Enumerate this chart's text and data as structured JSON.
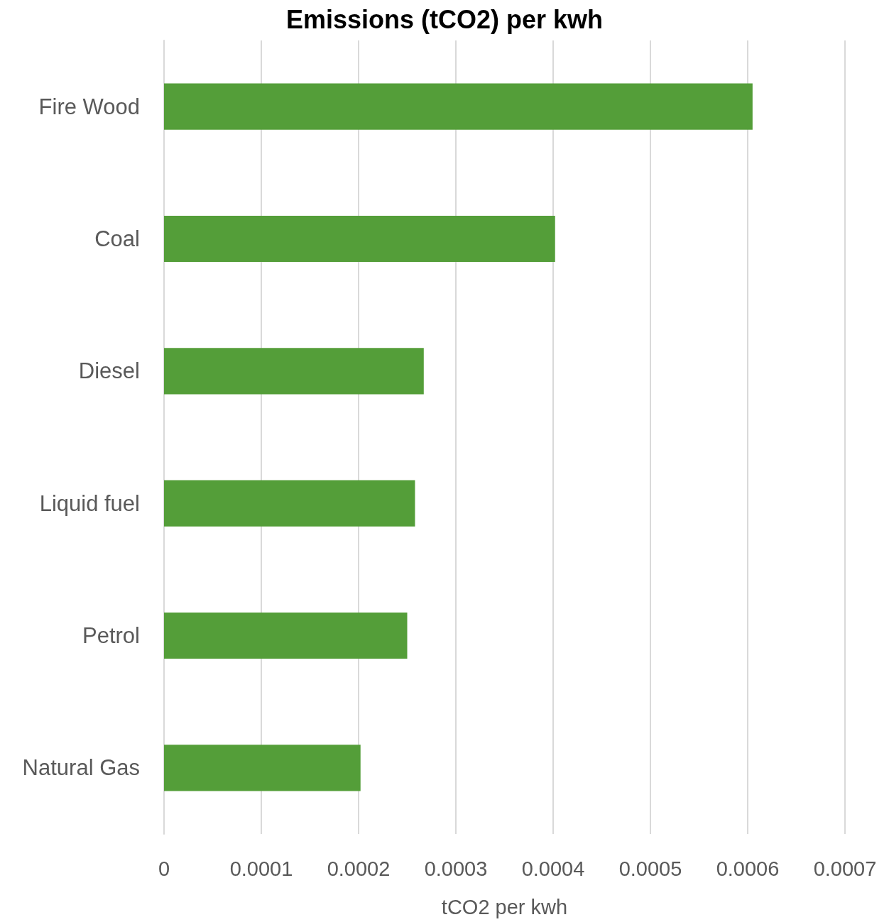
{
  "chart_data": {
    "type": "bar",
    "orientation": "horizontal",
    "title": "Emissions (tCO2) per kwh",
    "xlabel": "tCO2 per kwh",
    "categories": [
      "Fire Wood",
      "Coal",
      "Diesel",
      "Liquid fuel",
      "Petrol",
      "Natural Gas"
    ],
    "values": [
      0.000605,
      0.000402,
      0.000267,
      0.000258,
      0.00025,
      0.000202
    ],
    "color": "#549e39",
    "xlim": [
      0,
      0.0007
    ],
    "xticks": [
      0,
      0.0001,
      0.0002,
      0.0003,
      0.0004,
      0.0005,
      0.0006,
      0.0007
    ],
    "grid": "x"
  }
}
